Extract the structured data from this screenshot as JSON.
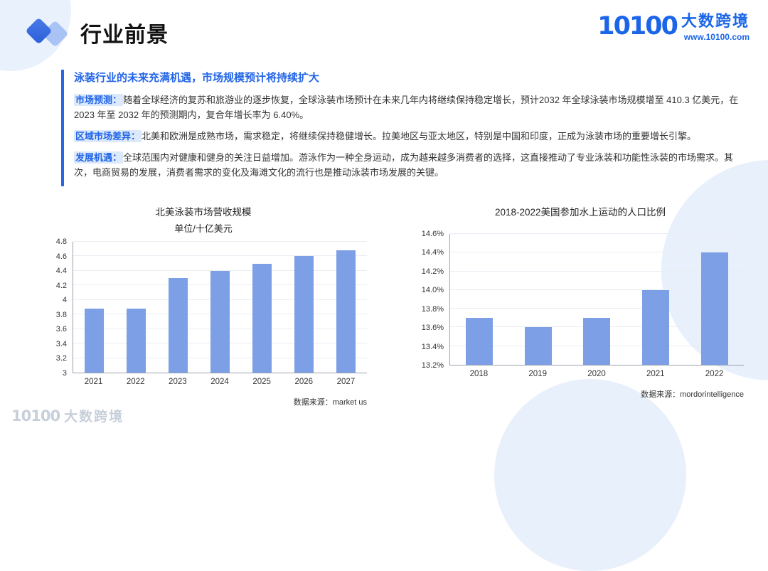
{
  "page": {
    "title": "行业前景",
    "logo": {
      "mark": "10100",
      "brand": "大数跨境",
      "url": "www.10100.com"
    },
    "watermark": "大数跨境"
  },
  "content": {
    "heading": "泳装行业的未来充满机遇，市场规模预计将持续扩大",
    "paragraphs": [
      {
        "label": "市场预测：",
        "text": "随着全球经济的复苏和旅游业的逐步恢复，全球泳装市场预计在未来几年内将继续保持稳定增长，预计2032 年全球泳装市场规模增至 410.3 亿美元，在 2023 年至 2032 年的预测期内，复合年增长率为 6.40%。"
      },
      {
        "label": "区域市场差异：",
        "text": "北美和欧洲是成熟市场，需求稳定，将继续保持稳健增长。拉美地区与亚太地区，特别是中国和印度，正成为泳装市场的重要增长引擎。"
      },
      {
        "label": "发展机遇：",
        "text": "全球范围内对健康和健身的关注日益增加。游泳作为一种全身运动，成为越来越多消费者的选择，这直接推动了专业泳装和功能性泳装的市场需求。其次，电商贸易的发展，消费者需求的变化及海滩文化的流行也是推动泳装市场发展的关键。"
      }
    ]
  },
  "chart_data": [
    {
      "type": "bar",
      "title": "北美泳装市场营收规模",
      "subtitle": "单位/十亿美元",
      "categories": [
        "2021",
        "2022",
        "2023",
        "2024",
        "2025",
        "2026",
        "2027"
      ],
      "values": [
        3.88,
        3.88,
        4.3,
        4.4,
        4.5,
        4.6,
        4.68
      ],
      "ylim": [
        3,
        4.8
      ],
      "ytick": 0.2,
      "yformat": "number",
      "grid": true,
      "legend": "none",
      "bar_color": "#7c9fe6",
      "source": "数据来源：market us"
    },
    {
      "type": "bar",
      "title": "2018-2022美国参加水上运动的人口比例",
      "subtitle": "",
      "categories": [
        "2018",
        "2019",
        "2020",
        "2021",
        "2022"
      ],
      "values": [
        13.7,
        13.6,
        13.7,
        14.0,
        14.4
      ],
      "ylim": [
        13.2,
        14.6
      ],
      "ytick": 0.2,
      "yformat": "percent",
      "grid": true,
      "legend": "none",
      "bar_color": "#7c9fe6",
      "source": "数据来源：mordorintelligence"
    }
  ],
  "colors": {
    "accent": "#2667e8",
    "bar": "#7c9fe6",
    "label_highlight": "#dce9fb"
  }
}
